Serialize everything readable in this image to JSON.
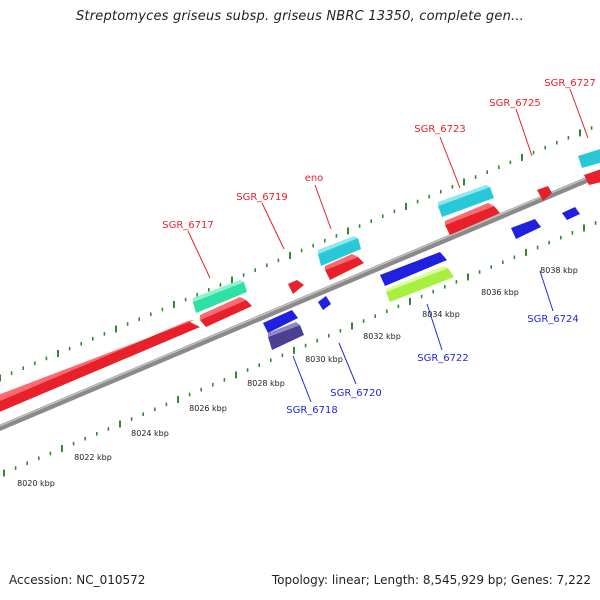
{
  "title": "Streptomyces griseus subsp. griseus NBRC 13350, complete gen...",
  "footer": {
    "accession": "Accession: NC_010572",
    "topology": "Topology: linear; Length: 8,545,929 bp; Genes: 7,222"
  },
  "colors": {
    "backbone": "#8a8a8a",
    "scale_ticks": "#2e8b2e",
    "forward_label": "#e8202a",
    "reverse_label": "#1f2bd6"
  },
  "scale_labels": [
    "8020 kbp",
    "8022 kbp",
    "8024 kbp",
    "8026 kbp",
    "8028 kbp",
    "8030 kbp",
    "8032 kbp",
    "8034 kbp",
    "8036 kbp",
    "8038 kbp"
  ],
  "genes": {
    "forward": [
      "SGR_6717",
      "SGR_6719",
      "eno",
      "SGR_6723",
      "SGR_6725",
      "SGR_6727"
    ],
    "reverse": [
      "SGR_6718",
      "SGR_6720",
      "SGR_6722",
      "SGR_6724"
    ]
  }
}
